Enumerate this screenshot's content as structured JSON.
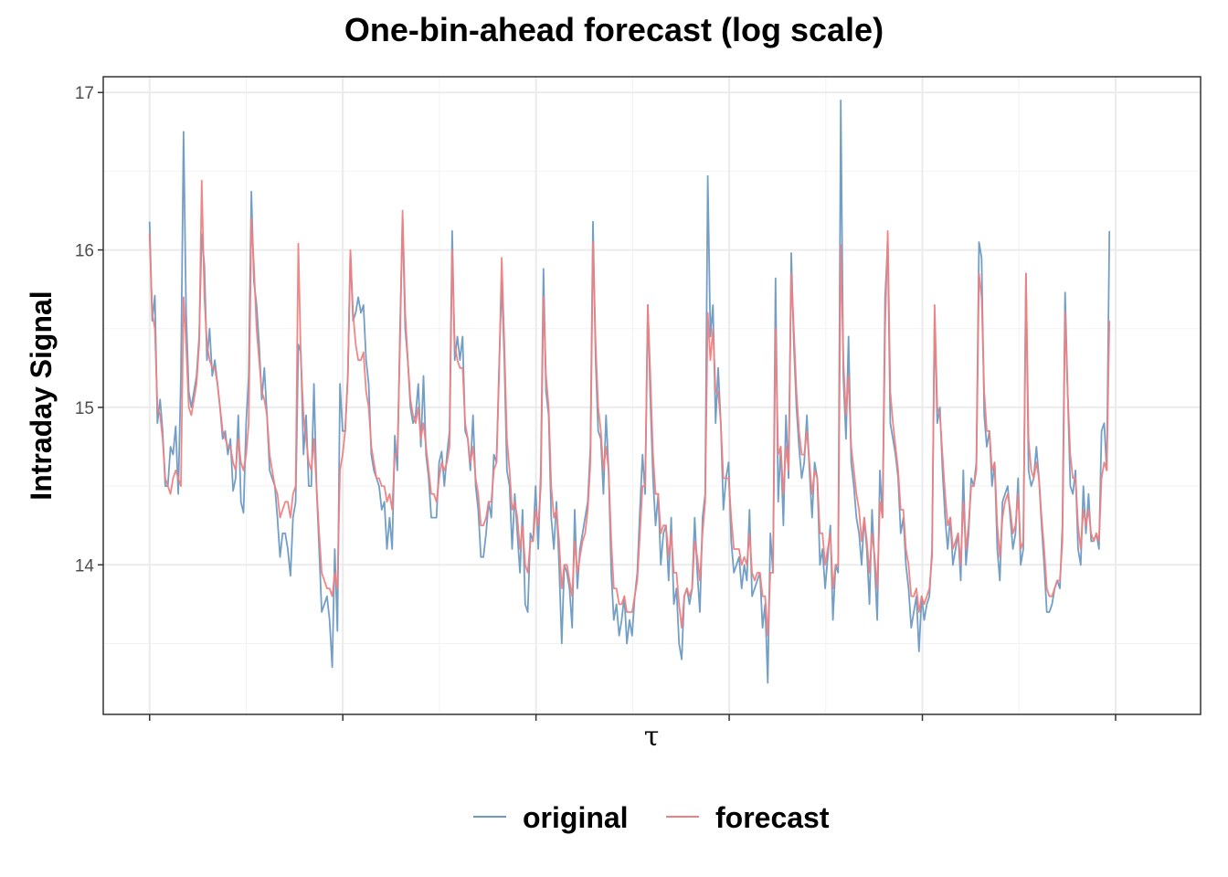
{
  "chart_data": {
    "type": "line",
    "title": "One-bin-ahead forecast (log scale)",
    "xlabel": "τ",
    "ylabel": "Intraday Signal",
    "ylim": [
      13.05,
      17.1
    ],
    "xlim": [
      -12,
      272
    ],
    "yticks": [
      14,
      15,
      16,
      17
    ],
    "xticks_unlabeled": [
      0,
      50,
      100,
      150,
      200,
      250
    ],
    "grid": true,
    "legend_position": "bottom",
    "series": [
      {
        "name": "original",
        "color": "#6b9ac4",
        "values": [
          16.18,
          15.55,
          15.71,
          14.9,
          15.05,
          14.85,
          14.5,
          14.5,
          14.75,
          14.7,
          14.88,
          14.45,
          15.2,
          16.75,
          15.6,
          15.1,
          15.0,
          15.1,
          15.2,
          15.45,
          16.1,
          15.9,
          15.3,
          15.5,
          15.2,
          15.3,
          15.15,
          15.0,
          14.8,
          14.85,
          14.7,
          14.8,
          14.47,
          14.55,
          14.95,
          14.4,
          14.33,
          14.9,
          15.2,
          16.37,
          15.8,
          15.65,
          15.4,
          15.05,
          15.25,
          14.95,
          14.6,
          14.55,
          14.5,
          14.3,
          14.05,
          14.2,
          14.2,
          14.1,
          13.93,
          14.3,
          14.4,
          15.4,
          15.35,
          14.7,
          14.95,
          14.5,
          14.5,
          15.15,
          14.5,
          14.1,
          13.7,
          13.75,
          13.8,
          13.65,
          13.35,
          14.1,
          13.58,
          15.15,
          14.85,
          14.85,
          15.2,
          15.98,
          15.55,
          15.6,
          15.7,
          15.6,
          15.65,
          15.3,
          15.15,
          14.7,
          14.6,
          14.55,
          14.5,
          14.35,
          14.4,
          14.1,
          14.3,
          14.1,
          14.82,
          14.6,
          15.5,
          16.2,
          15.5,
          15.3,
          15.0,
          14.9,
          14.95,
          15.15,
          14.75,
          15.2,
          14.7,
          14.55,
          14.3,
          14.3,
          14.3,
          14.65,
          14.72,
          14.5,
          14.7,
          14.85,
          16.12,
          15.3,
          15.45,
          15.3,
          15.45,
          14.85,
          14.8,
          14.6,
          14.95,
          14.5,
          14.35,
          14.05,
          14.05,
          14.2,
          14.4,
          14.3,
          14.7,
          14.65,
          15.25,
          15.8,
          15.3,
          14.6,
          14.5,
          14.1,
          14.45,
          14.2,
          13.95,
          14.35,
          13.75,
          13.7,
          14.2,
          14.15,
          14.5,
          14.1,
          14.6,
          15.88,
          15.1,
          14.95,
          14.3,
          14.1,
          14.4,
          14.0,
          13.5,
          14.0,
          13.95,
          13.85,
          13.6,
          14.35,
          13.85,
          14.1,
          14.2,
          14.3,
          14.4,
          14.75,
          16.18,
          15.3,
          14.85,
          14.8,
          14.45,
          14.95,
          14.6,
          13.95,
          13.65,
          13.75,
          13.55,
          13.65,
          13.8,
          13.5,
          13.65,
          13.55,
          13.8,
          13.95,
          14.35,
          14.7,
          14.45,
          15.65,
          15.05,
          14.55,
          14.25,
          14.45,
          14.0,
          14.2,
          14.25,
          13.9,
          14.3,
          13.75,
          13.85,
          13.5,
          13.4,
          13.8,
          13.85,
          13.75,
          13.85,
          14.3,
          13.95,
          13.7,
          14.3,
          14.45,
          16.47,
          15.45,
          15.65,
          14.9,
          15.25,
          14.9,
          14.35,
          14.55,
          14.65,
          14.15,
          13.95,
          14.0,
          14.05,
          13.85,
          14.0,
          13.9,
          14.35,
          13.8,
          13.85,
          13.9,
          13.95,
          13.6,
          13.75,
          13.25,
          14.2,
          13.95,
          15.82,
          14.4,
          14.75,
          14.25,
          14.95,
          14.55,
          15.98,
          15.4,
          15.0,
          14.75,
          14.55,
          14.65,
          14.95,
          14.6,
          14.3,
          14.65,
          14.55,
          14.0,
          14.1,
          13.85,
          14.05,
          14.25,
          13.65,
          14.0,
          13.95,
          16.95,
          15.2,
          14.8,
          15.45,
          14.65,
          14.5,
          14.3,
          14.2,
          14.0,
          14.3,
          14.1,
          13.75,
          14.35,
          14.0,
          13.65,
          14.6,
          14.3,
          15.7,
          16.05,
          14.9,
          14.8,
          14.7,
          14.55,
          14.2,
          14.3,
          14.0,
          13.85,
          13.6,
          13.7,
          13.8,
          13.45,
          13.8,
          13.65,
          13.75,
          13.8,
          14.1,
          15.58,
          14.9,
          15.0,
          14.6,
          14.3,
          14.1,
          14.3,
          14.0,
          14.1,
          14.2,
          13.9,
          14.6,
          14.0,
          14.2,
          14.55,
          14.5,
          14.65,
          16.05,
          15.95,
          14.95,
          14.75,
          14.85,
          14.5,
          14.65,
          14.1,
          13.9,
          14.4,
          14.45,
          14.5,
          14.3,
          14.1,
          14.2,
          14.55,
          14.0,
          14.1,
          15.85,
          14.6,
          14.5,
          14.55,
          14.75,
          14.55,
          14.25,
          14.0,
          13.7,
          13.7,
          13.75,
          13.85,
          13.9,
          13.85,
          14.25,
          15.73,
          15.1,
          14.5,
          14.45,
          14.6,
          14.1,
          14.0,
          14.5,
          14.2,
          14.45,
          14.15,
          14.15,
          14.2,
          14.1,
          14.85,
          14.9,
          14.6,
          16.12
        ]
      },
      {
        "name": "forecast",
        "color": "#f08080",
        "values": [
          16.1,
          15.6,
          15.5,
          15.0,
          14.95,
          14.8,
          14.55,
          14.5,
          14.45,
          14.55,
          14.6,
          14.55,
          14.5,
          15.7,
          15.4,
          15.0,
          14.95,
          15.05,
          15.15,
          15.4,
          16.44,
          15.7,
          15.4,
          15.3,
          15.25,
          15.25,
          15.15,
          15.0,
          14.85,
          14.8,
          14.75,
          14.75,
          14.65,
          14.6,
          14.8,
          14.65,
          14.6,
          14.7,
          14.9,
          16.2,
          15.9,
          15.5,
          15.3,
          15.1,
          15.05,
          14.95,
          14.7,
          14.6,
          14.5,
          14.45,
          14.3,
          14.35,
          14.4,
          14.4,
          14.3,
          14.45,
          14.5,
          16.04,
          15.3,
          14.95,
          14.8,
          14.65,
          14.6,
          14.8,
          14.5,
          14.2,
          13.95,
          13.9,
          13.85,
          13.85,
          13.8,
          13.95,
          13.85,
          14.6,
          14.7,
          14.85,
          15.2,
          16.0,
          15.6,
          15.4,
          15.3,
          15.3,
          15.35,
          15.1,
          15.0,
          14.75,
          14.65,
          14.55,
          14.55,
          14.5,
          14.5,
          14.4,
          14.45,
          14.35,
          14.7,
          14.7,
          15.4,
          16.25,
          15.6,
          15.3,
          15.05,
          14.95,
          14.9,
          15.0,
          14.8,
          14.9,
          14.75,
          14.6,
          14.45,
          14.45,
          14.4,
          14.55,
          14.65,
          14.6,
          14.65,
          14.75,
          16.0,
          15.4,
          15.3,
          15.25,
          15.25,
          14.9,
          14.8,
          14.65,
          14.75,
          14.55,
          14.45,
          14.25,
          14.25,
          14.3,
          14.4,
          14.4,
          14.6,
          14.65,
          15.2,
          15.95,
          15.4,
          14.8,
          14.6,
          14.35,
          14.4,
          14.3,
          14.1,
          14.25,
          14.0,
          13.95,
          14.15,
          14.15,
          14.35,
          14.25,
          14.5,
          15.7,
          15.2,
          15.0,
          14.5,
          14.3,
          14.35,
          14.15,
          13.85,
          14.0,
          14.0,
          13.9,
          13.8,
          14.15,
          13.95,
          14.05,
          14.15,
          14.2,
          14.35,
          14.65,
          16.05,
          15.4,
          15.0,
          14.85,
          14.6,
          14.75,
          14.6,
          14.15,
          13.85,
          13.85,
          13.75,
          13.75,
          13.8,
          13.7,
          13.7,
          13.7,
          13.8,
          13.9,
          14.2,
          14.5,
          14.5,
          15.65,
          15.2,
          14.7,
          14.45,
          14.45,
          14.2,
          14.25,
          14.25,
          14.05,
          14.2,
          13.95,
          13.95,
          13.75,
          13.6,
          13.8,
          13.85,
          13.8,
          13.85,
          14.15,
          14.05,
          13.9,
          14.2,
          14.4,
          15.6,
          15.3,
          15.5,
          15.1,
          15.1,
          14.9,
          14.55,
          14.55,
          14.55,
          14.3,
          14.1,
          14.1,
          14.1,
          14.0,
          14.05,
          14.0,
          14.2,
          13.95,
          13.9,
          13.95,
          13.95,
          13.8,
          13.8,
          13.55,
          13.95,
          13.95,
          15.5,
          14.7,
          14.75,
          14.45,
          14.75,
          14.6,
          15.85,
          15.5,
          15.1,
          14.85,
          14.7,
          14.7,
          14.85,
          14.65,
          14.45,
          14.6,
          14.55,
          14.2,
          14.2,
          14.0,
          14.1,
          14.2,
          13.85,
          14.0,
          14.0,
          16.03,
          15.3,
          14.95,
          15.2,
          14.75,
          14.6,
          14.45,
          14.35,
          14.15,
          14.3,
          14.15,
          13.95,
          14.2,
          14.05,
          13.85,
          14.4,
          14.3,
          15.5,
          16.12,
          15.1,
          14.9,
          14.75,
          14.6,
          14.35,
          14.35,
          14.1,
          14.0,
          13.8,
          13.8,
          13.85,
          13.7,
          13.8,
          13.75,
          13.8,
          13.85,
          14.05,
          15.65,
          15.0,
          14.95,
          14.7,
          14.45,
          14.25,
          14.3,
          14.1,
          14.15,
          14.2,
          14.0,
          14.4,
          14.1,
          14.25,
          14.5,
          14.5,
          14.6,
          15.85,
          15.7,
          15.1,
          14.85,
          14.85,
          14.6,
          14.65,
          14.25,
          14.05,
          14.3,
          14.4,
          14.45,
          14.35,
          14.2,
          14.25,
          14.45,
          14.1,
          14.15,
          15.85,
          14.8,
          14.6,
          14.55,
          14.65,
          14.55,
          14.3,
          14.1,
          13.85,
          13.8,
          13.8,
          13.85,
          13.9,
          13.9,
          14.15,
          15.6,
          15.1,
          14.7,
          14.55,
          14.55,
          14.25,
          14.1,
          14.35,
          14.25,
          14.35,
          14.2,
          14.15,
          14.2,
          14.15,
          14.55,
          14.65,
          14.6,
          15.55
        ]
      }
    ]
  }
}
